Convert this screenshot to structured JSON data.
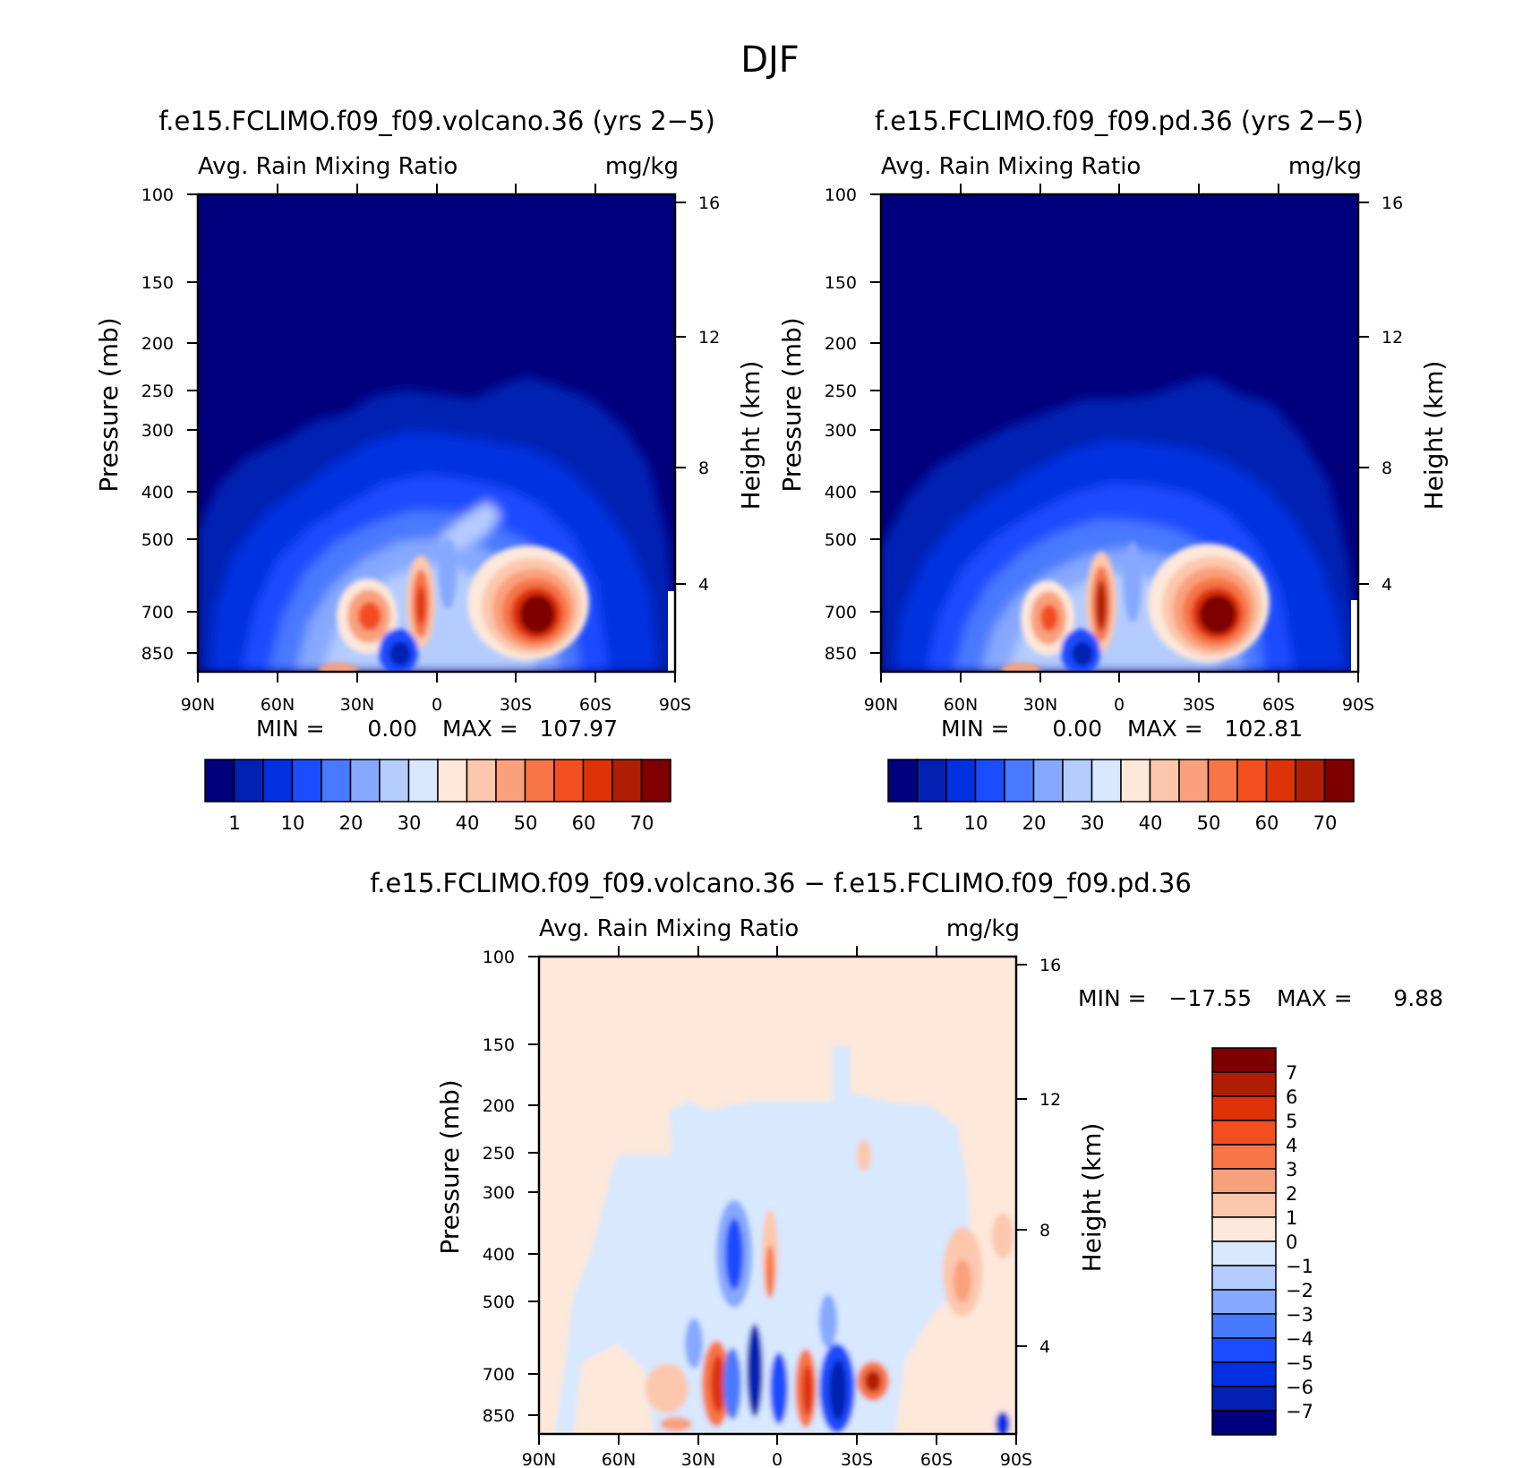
{
  "figure": {
    "title": "DJF"
  },
  "chart_data": [
    {
      "type": "heatmap",
      "title": "f.e15.FCLIMO.f09_f09.volcano.36 (yrs 2−5)",
      "subtitle_left": "Avg. Rain Mixing Ratio",
      "subtitle_right": "mg/kg",
      "ylabel": "Pressure (mb)",
      "ylabel_right": "Height (km)",
      "x_ticklabels": [
        "90N",
        "60N",
        "30N",
        "0",
        "30S",
        "60S",
        "90S"
      ],
      "y_ticklabels": [
        "100",
        "150",
        "200",
        "250",
        "300",
        "400",
        "500",
        "700",
        "850"
      ],
      "y_right_ticklabels": [
        "16",
        "12",
        "8",
        "4"
      ],
      "x": [
        90,
        60,
        30,
        0,
        -30,
        -60,
        -90
      ],
      "y_pressure": [
        100,
        150,
        200,
        250,
        300,
        400,
        500,
        700,
        850
      ],
      "min_label": "MIN =",
      "min_value": "0.00",
      "max_label": "MAX =",
      "max_value": "107.97",
      "features": [
        {
          "lat": 29,
          "p": 700,
          "value": 55
        },
        {
          "lat": 6,
          "p": 680,
          "value": 55
        },
        {
          "lat": -35,
          "p": 700,
          "value": 78
        },
        {
          "lat": 14,
          "p": 800,
          "value": 3
        }
      ],
      "colorbar_labels": [
        "1",
        "10",
        "20",
        "30",
        "40",
        "50",
        "60",
        "70"
      ]
    },
    {
      "type": "heatmap",
      "title": "f.e15.FCLIMO.f09_f09.pd.36 (yrs 2−5)",
      "subtitle_left": "Avg. Rain Mixing Ratio",
      "subtitle_right": "mg/kg",
      "ylabel": "Pressure (mb)",
      "ylabel_right": "Height (km)",
      "x_ticklabels": [
        "90N",
        "60N",
        "30N",
        "0",
        "30S",
        "60S",
        "90S"
      ],
      "y_ticklabels": [
        "100",
        "150",
        "200",
        "250",
        "300",
        "400",
        "500",
        "700",
        "850"
      ],
      "y_right_ticklabels": [
        "16",
        "12",
        "8",
        "4"
      ],
      "x": [
        90,
        60,
        30,
        0,
        -30,
        -60,
        -90
      ],
      "y_pressure": [
        100,
        150,
        200,
        250,
        300,
        400,
        500,
        700,
        850
      ],
      "min_label": "MIN =",
      "min_value": "0.00",
      "max_label": "MAX =",
      "max_value": "102.81",
      "features": [
        {
          "lat": 27,
          "p": 700,
          "value": 50
        },
        {
          "lat": 8,
          "p": 680,
          "value": 65
        },
        {
          "lat": -37,
          "p": 700,
          "value": 78
        },
        {
          "lat": 14,
          "p": 800,
          "value": 3
        }
      ],
      "colorbar_labels": [
        "1",
        "10",
        "20",
        "30",
        "40",
        "50",
        "60",
        "70"
      ]
    },
    {
      "type": "heatmap",
      "title": "f.e15.FCLIMO.f09_f09.volcano.36 − f.e15.FCLIMO.f09_f09.pd.36",
      "subtitle_left": "Avg. Rain Mixing Ratio",
      "subtitle_right": "mg/kg",
      "ylabel": "Pressure (mb)",
      "ylabel_right": "Height (km)",
      "x_ticklabels": [
        "90N",
        "60N",
        "30N",
        "0",
        "30S",
        "60S",
        "90S"
      ],
      "y_ticklabels": [
        "100",
        "150",
        "200",
        "250",
        "300",
        "400",
        "500",
        "700",
        "850"
      ],
      "y_right_ticklabels": [
        "16",
        "12",
        "8",
        "4"
      ],
      "x": [
        90,
        60,
        30,
        0,
        -30,
        -60,
        -90
      ],
      "y_pressure": [
        100,
        150,
        200,
        250,
        300,
        400,
        500,
        700,
        850
      ],
      "min_label": "MIN =",
      "min_value": "−17.55",
      "max_label": "MAX =",
      "max_value": "9.88",
      "colorbar_labels": [
        "7",
        "6",
        "5",
        "4",
        "3",
        "2",
        "1",
        "0",
        "−1",
        "−2",
        "−3",
        "−4",
        "−5",
        "−6",
        "−7"
      ]
    }
  ],
  "colors": {
    "sequential": [
      "#00007d",
      "#0021b2",
      "#0030e0",
      "#1c4cff",
      "#4879ff",
      "#86a8ff",
      "#b4ccff",
      "#d7e8ff",
      "#fde8da",
      "#fcc7ad",
      "#f9a07c",
      "#f77546",
      "#f24e20",
      "#de3309",
      "#b01e06",
      "#7f0000"
    ],
    "diverging": [
      "#7f0000",
      "#b01e06",
      "#de3309",
      "#f24e20",
      "#f77546",
      "#f9a07c",
      "#fcc7ad",
      "#fde8da",
      "#d7e8ff",
      "#b4ccff",
      "#86a8ff",
      "#4879ff",
      "#1c4cff",
      "#0030e0",
      "#0021b2",
      "#00007d"
    ]
  }
}
